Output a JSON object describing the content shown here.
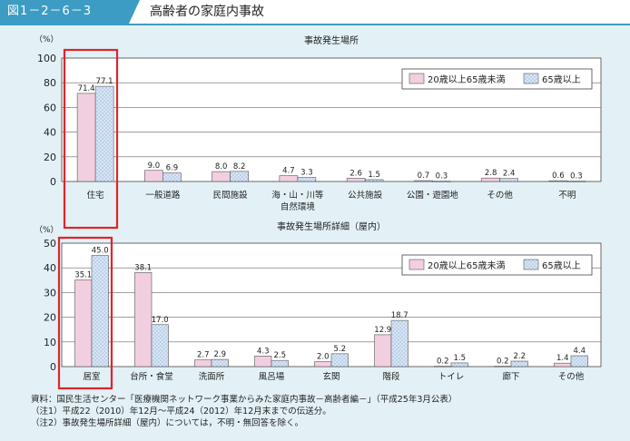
{
  "header": {
    "figure_number": "図1－2－6－3",
    "title": "高齢者の家庭内事故"
  },
  "colors": {
    "accent": "#3c9cc4",
    "series_a_fill": "#f2cfe0",
    "series_b_fill": "#d8e6f6",
    "highlight": "#e0242b"
  },
  "chart_data": [
    {
      "type": "bar",
      "title": "事故発生場所",
      "ylabel": "（%）",
      "ylim": [
        0,
        100
      ],
      "yticks": [
        0,
        20,
        40,
        60,
        80,
        100
      ],
      "categories": [
        "住宅",
        "一般道路",
        "民間施設",
        "海・山・川等\n自然環境",
        "公共施設",
        "公園・遊園地",
        "その他",
        "不明"
      ],
      "series": [
        {
          "name": "20歳以上65歳未満",
          "values": [
            71.4,
            9.0,
            8.0,
            4.7,
            2.6,
            0.7,
            2.8,
            0.6
          ],
          "labels": [
            "71.4",
            "9.0",
            "8.0",
            "4.7",
            "2.6",
            "0.7",
            "2.8",
            "0.6"
          ]
        },
        {
          "name": "65歳以上",
          "values": [
            77.1,
            6.9,
            8.2,
            3.3,
            1.5,
            0.3,
            2.4,
            0.3
          ],
          "labels": [
            "77.1",
            "6.9",
            "8.2",
            "3.3",
            "1.5",
            "0.3",
            "2.4",
            "0.3"
          ]
        }
      ],
      "highlight_category": "住宅",
      "legend_position": "top-right"
    },
    {
      "type": "bar",
      "title": "事故発生場所詳細（屋内）",
      "ylabel": "（%）",
      "ylim": [
        0,
        50
      ],
      "yticks": [
        0,
        10,
        20,
        30,
        40,
        50
      ],
      "categories": [
        "居室",
        "台所・食堂",
        "洗面所",
        "風呂場",
        "玄関",
        "階段",
        "トイレ",
        "廊下",
        "その他"
      ],
      "series": [
        {
          "name": "20歳以上65歳未満",
          "values": [
            35.1,
            38.1,
            2.7,
            4.3,
            2.0,
            12.9,
            0.2,
            0.2,
            1.4
          ],
          "labels": [
            "35.1",
            "38.1",
            "2.7",
            "4.3",
            "2.0",
            "12.9",
            "0.2",
            "0.2",
            "1.4"
          ]
        },
        {
          "name": "65歳以上",
          "values": [
            45.0,
            17.0,
            2.9,
            2.5,
            5.2,
            18.7,
            1.5,
            2.2,
            4.4
          ],
          "labels": [
            "45.0",
            "17.0",
            "2.9",
            "2.5",
            "5.2",
            "18.7",
            "1.5",
            "2.2",
            "4.4"
          ]
        }
      ],
      "highlight_category": "居室",
      "legend_position": "top-right"
    }
  ],
  "notes": [
    "資料：国民生活センター「医療機関ネットワーク事業からみた家庭内事故－高齢者編－」（平成25年3月公表）",
    "（注1）平成22（2010）年12月～平成24（2012）年12月末までの伝送分。",
    "（注2）事故発生場所詳細（屋内）については，不明・無回答を除く。"
  ]
}
